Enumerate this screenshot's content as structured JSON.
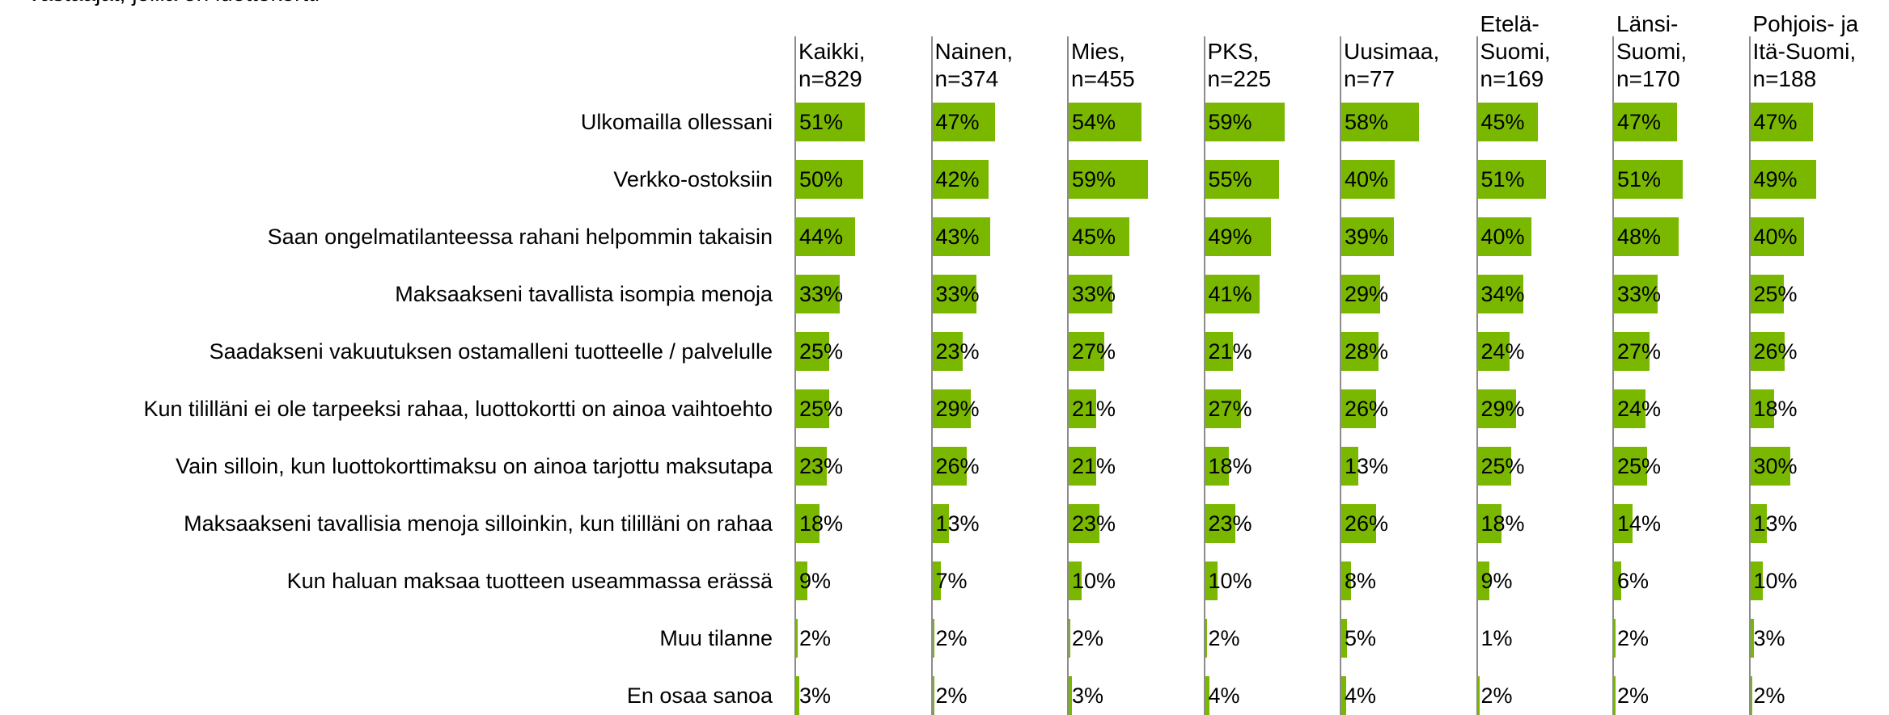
{
  "chart_data": {
    "type": "bar",
    "subtitle": "Vastaajat, joilla on luottokortti",
    "color": "#7ab800",
    "categories": [
      "Ulkomailla ollessani",
      "Verkko-ostoksiin",
      "Saan ongelmatilanteessa rahani helpommin takaisin",
      "Maksaakseni tavallista isompia menoja",
      "Saadakseni vakuutuksen ostamalleni tuotteelle / palvelulle",
      "Kun tililläni ei ole tarpeeksi rahaa, luottokortti on ainoa vaihtoehto",
      "Vain silloin, kun luottokorttimaksu on ainoa tarjottu maksutapa",
      "Maksaakseni tavallisia menoja silloinkin, kun tililläni on rahaa",
      "Kun haluan maksaa tuotteen useammassa erässä",
      "Muu tilanne",
      "En osaa sanoa"
    ],
    "series": [
      {
        "name": "Kaikki,\nn=829",
        "values": [
          51,
          50,
          44,
          33,
          25,
          25,
          23,
          18,
          9,
          2,
          3
        ],
        "value_labels": [
          "51%",
          "50%",
          "44%",
          "33%",
          "25%",
          "25%",
          "23%",
          "18%",
          "9%",
          "2%",
          "3%"
        ]
      },
      {
        "name": "Nainen,\nn=374",
        "values": [
          47,
          42,
          43,
          33,
          23,
          29,
          26,
          13,
          7,
          2,
          2
        ],
        "value_labels": [
          "47%",
          "42%",
          "43%",
          "33%",
          "23%",
          "29%",
          "26%",
          "13%",
          "7%",
          "2%",
          "2%"
        ]
      },
      {
        "name": "Mies,\nn=455",
        "values": [
          54,
          59,
          45,
          33,
          27,
          21,
          21,
          23,
          10,
          2,
          3
        ],
        "value_labels": [
          "54%",
          "59%",
          "45%",
          "33%",
          "27%",
          "21%",
          "21%",
          "23%",
          "10%",
          "2%",
          "3%"
        ]
      },
      {
        "name": "PKS,\nn=225",
        "values": [
          59,
          55,
          49,
          41,
          21,
          27,
          18,
          23,
          10,
          2,
          4
        ],
        "value_labels": [
          "59%",
          "55%",
          "49%",
          "41%",
          "21%",
          "27%",
          "18%",
          "23%",
          "10%",
          "2%",
          "4%"
        ]
      },
      {
        "name": "Uusimaa,\nn=77",
        "values": [
          58,
          40,
          39,
          29,
          28,
          26,
          13,
          26,
          8,
          5,
          4
        ],
        "value_labels": [
          "58%",
          "40%",
          "39%",
          "29%",
          "28%",
          "26%",
          "13%",
          "26%",
          "8%",
          "5%",
          "4%"
        ]
      },
      {
        "name": "Etelä-\nSuomi,\nn=169",
        "values": [
          45,
          51,
          40,
          34,
          24,
          29,
          25,
          18,
          9,
          1,
          2
        ],
        "value_labels": [
          "45%",
          "51%",
          "40%",
          "34%",
          "24%",
          "29%",
          "25%",
          "18%",
          "9%",
          "1%",
          "2%"
        ]
      },
      {
        "name": "Länsi-\nSuomi,\nn=170",
        "values": [
          47,
          51,
          48,
          33,
          27,
          24,
          25,
          14,
          6,
          2,
          2
        ],
        "value_labels": [
          "47%",
          "51%",
          "48%",
          "33%",
          "27%",
          "24%",
          "25%",
          "14%",
          "6%",
          "2%",
          "2%"
        ]
      },
      {
        "name": "Pohjois- ja\nItä-Suomi,\nn=188",
        "values": [
          47,
          49,
          40,
          25,
          26,
          18,
          30,
          13,
          10,
          3,
          2
        ],
        "value_labels": [
          "47%",
          "49%",
          "40%",
          "25%",
          "26%",
          "18%",
          "30%",
          "13%",
          "10%",
          "3%",
          "2%"
        ]
      }
    ]
  }
}
